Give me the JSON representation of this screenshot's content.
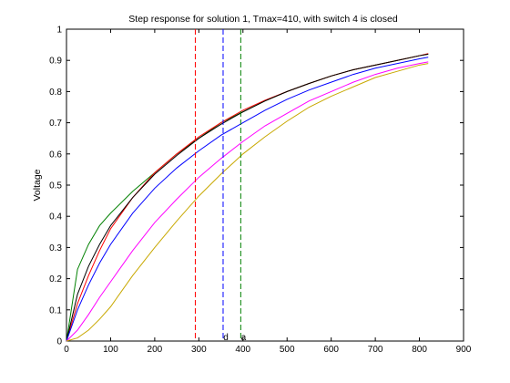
{
  "chart_data": {
    "type": "line",
    "title": "Step response for solution 1, Tmax=410, with switch 4 is closed",
    "xlabel": "",
    "ylabel": "Voltage",
    "xlim": [
      0,
      900
    ],
    "ylim": [
      0,
      1
    ],
    "grid": false,
    "xticks": [
      0,
      100,
      200,
      300,
      400,
      500,
      600,
      700,
      800,
      900
    ],
    "yticks": [
      0,
      0.1,
      0.2,
      0.3,
      0.4,
      0.5,
      0.6,
      0.7,
      0.8,
      0.9,
      1
    ],
    "x": [
      0,
      25,
      50,
      75,
      100,
      150,
      200,
      250,
      300,
      350,
      400,
      450,
      500,
      550,
      600,
      650,
      700,
      750,
      800,
      820
    ],
    "series": [
      {
        "color": "#008000",
        "values": [
          0,
          0.23,
          0.31,
          0.37,
          0.41,
          0.48,
          0.54,
          0.6,
          0.65,
          0.7,
          0.735,
          0.77,
          0.8,
          0.826,
          0.85,
          0.87,
          0.885,
          0.9,
          0.915,
          0.92
        ]
      },
      {
        "color": "#ff0000",
        "values": [
          0,
          0.12,
          0.21,
          0.29,
          0.36,
          0.46,
          0.54,
          0.6,
          0.655,
          0.7,
          0.74,
          0.772,
          0.8,
          0.826,
          0.85,
          0.87,
          0.885,
          0.9,
          0.915,
          0.922
        ]
      },
      {
        "color": "#000000",
        "values": [
          0,
          0.15,
          0.24,
          0.31,
          0.37,
          0.46,
          0.535,
          0.595,
          0.65,
          0.695,
          0.735,
          0.77,
          0.8,
          0.826,
          0.85,
          0.87,
          0.885,
          0.9,
          0.915,
          0.92
        ]
      },
      {
        "color": "#0000ff",
        "values": [
          0,
          0.1,
          0.18,
          0.25,
          0.31,
          0.41,
          0.49,
          0.555,
          0.61,
          0.66,
          0.7,
          0.74,
          0.775,
          0.805,
          0.83,
          0.855,
          0.875,
          0.89,
          0.905,
          0.91
        ]
      },
      {
        "color": "#ff00ff",
        "values": [
          0,
          0.035,
          0.085,
          0.14,
          0.19,
          0.29,
          0.38,
          0.455,
          0.525,
          0.585,
          0.64,
          0.69,
          0.73,
          0.77,
          0.8,
          0.83,
          0.855,
          0.875,
          0.89,
          0.895
        ]
      },
      {
        "color": "#c8a800",
        "values": [
          0,
          0.01,
          0.035,
          0.07,
          0.11,
          0.21,
          0.3,
          0.385,
          0.465,
          0.535,
          0.6,
          0.655,
          0.705,
          0.75,
          0.785,
          0.815,
          0.845,
          0.865,
          0.885,
          0.89
        ]
      }
    ],
    "vlines": [
      {
        "x": 292,
        "color": "#ff0000",
        "label": ""
      },
      {
        "x": 355,
        "color": "#0000ff",
        "label": "d"
      },
      {
        "x": 395,
        "color": "#008000",
        "label": "a"
      }
    ]
  }
}
